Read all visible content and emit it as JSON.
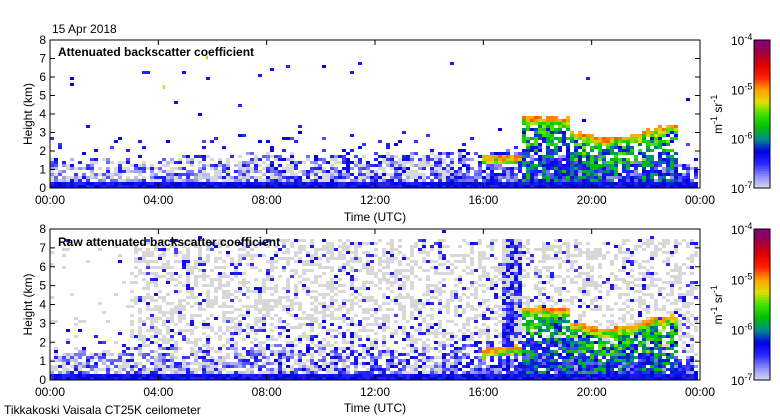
{
  "date_label": "15 Apr 2018",
  "footer_label": "Tikkakoski Vaisala CT25K ceilometer",
  "chart_data": [
    {
      "type": "heatmap",
      "title": "Attenuated backscatter coefficient",
      "xlabel": "Time (UTC)",
      "ylabel": "Height (km)",
      "xlim": [
        0,
        24
      ],
      "ylim": [
        0,
        8
      ],
      "xticks": [
        "00:00",
        "04:00",
        "08:00",
        "12:00",
        "16:00",
        "20:00",
        "00:00"
      ],
      "yticks": [
        "0",
        "1",
        "2",
        "3",
        "4",
        "5",
        "6",
        "7",
        "8"
      ],
      "raw": false,
      "boundary_layer": {
        "time_h": [
          0,
          4,
          8,
          12,
          16,
          18,
          20,
          22,
          24
        ],
        "top_km": [
          1.5,
          1.6,
          1.8,
          1.8,
          2.0,
          2.0,
          1.8,
          1.5,
          1.2
        ]
      },
      "clouds": [
        {
          "time_h": [
            16.0,
            17.5
          ],
          "top_km": [
            1.6,
            1.7
          ],
          "log10_peak": -5.0
        },
        {
          "time_h": [
            17.5,
            19.3
          ],
          "top_km": [
            3.8,
            3.7
          ],
          "log10_peak": -5.0
        },
        {
          "time_h": [
            19.3,
            20.5,
            21.5,
            22.5,
            23.3
          ],
          "top_km": [
            3.0,
            2.6,
            2.8,
            3.2,
            3.4
          ],
          "log10_peak": -5.0
        }
      ],
      "isolated_returns": [
        {
          "time_h": 5.8,
          "height_km": 7.0
        },
        {
          "time_h": 4.2,
          "height_km": 5.4
        }
      ]
    },
    {
      "type": "heatmap",
      "title": "Raw attenuated backscatter coefficient",
      "xlabel": "Time (UTC)",
      "ylabel": "Height (km)",
      "xlim": [
        0,
        24
      ],
      "ylim": [
        0,
        8
      ],
      "xticks": [
        "00:00",
        "04:00",
        "08:00",
        "12:00",
        "16:00",
        "20:00",
        "00:00"
      ],
      "yticks": [
        "0",
        "1",
        "2",
        "3",
        "4",
        "5",
        "6",
        "7",
        "8"
      ],
      "raw": true,
      "noise_start_h": 3.0,
      "precip_column_h": [
        16.8,
        17.5
      ],
      "boundary_layer": {
        "time_h": [
          0,
          4,
          8,
          12,
          16,
          18,
          20,
          22,
          24
        ],
        "top_km": [
          1.5,
          1.6,
          1.8,
          1.8,
          2.0,
          2.0,
          1.8,
          1.5,
          1.2
        ]
      },
      "clouds": [
        {
          "time_h": [
            16.0,
            17.5
          ],
          "top_km": [
            1.6,
            1.7
          ],
          "log10_peak": -5.0
        },
        {
          "time_h": [
            17.5,
            19.3
          ],
          "top_km": [
            3.8,
            3.7
          ],
          "log10_peak": -5.0
        },
        {
          "time_h": [
            19.3,
            20.5,
            21.5,
            22.5,
            23.3
          ],
          "top_km": [
            3.0,
            2.6,
            2.8,
            3.2,
            3.4
          ],
          "log10_peak": -5.0
        }
      ],
      "isolated_returns": []
    }
  ],
  "colorbar": {
    "unit_base1": "m",
    "unit_exp1": "-1",
    "unit_base2": " sr",
    "unit_exp2": "-1",
    "log10_range": [
      -7,
      -4
    ],
    "ticks": [
      {
        "base": "10",
        "exp": "-4"
      },
      {
        "base": "10",
        "exp": "-5"
      },
      {
        "base": "10",
        "exp": "-6"
      },
      {
        "base": "10",
        "exp": "-7"
      }
    ],
    "colors": [
      "#dcdcee",
      "#8c8cff",
      "#2828ff",
      "#0000e0",
      "#008c8c",
      "#00c000",
      "#40e000",
      "#e0e000",
      "#ffa000",
      "#ff2000",
      "#e00000",
      "#a00040",
      "#800080"
    ]
  }
}
